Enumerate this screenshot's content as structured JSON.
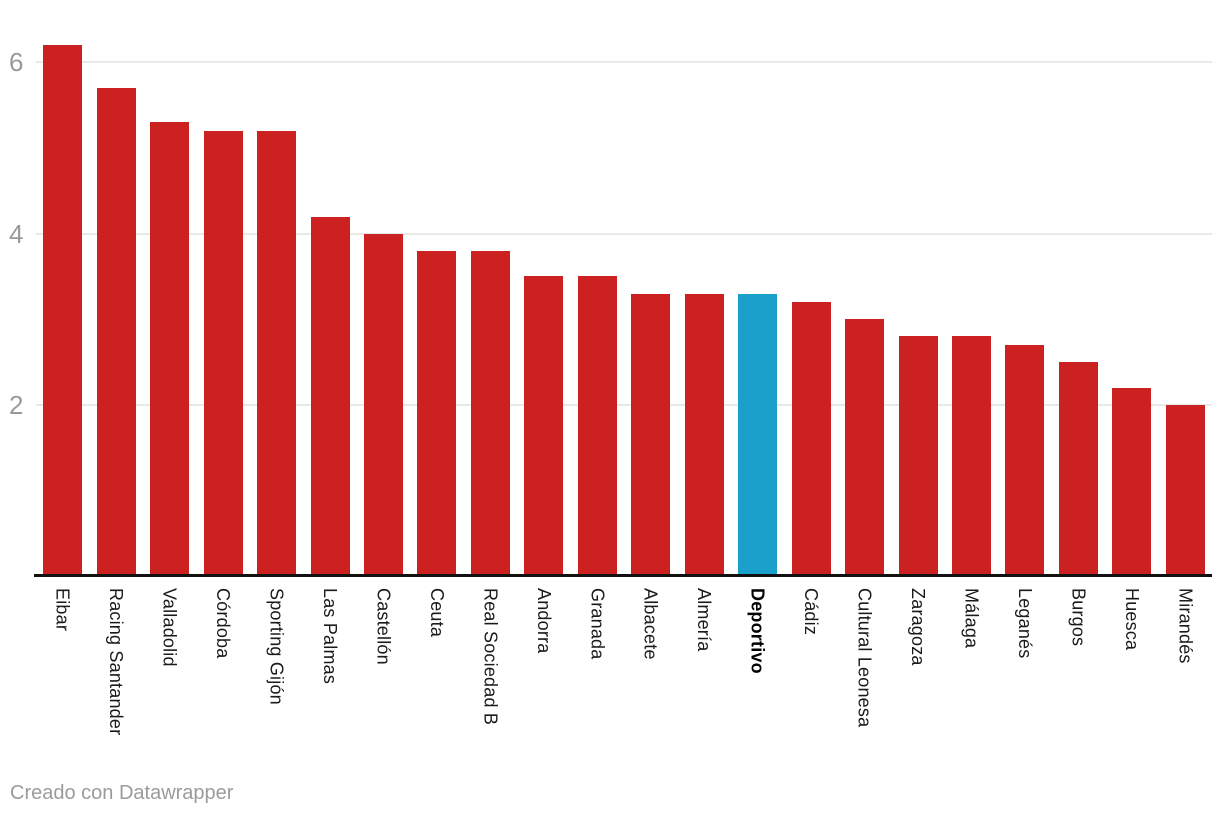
{
  "chart_data": {
    "type": "bar",
    "categories": [
      "Eibar",
      "Racing Santander",
      "Valladolid",
      "Córdoba",
      "Sporting Gijón",
      "Las Palmas",
      "Castellón",
      "Ceuta",
      "Real Sociedad B",
      "Andorra",
      "Granada",
      "Albacete",
      "Almería",
      "Deportivo",
      "Cádiz",
      "Cultural Leonesa",
      "Zaragoza",
      "Málaga",
      "Leganés",
      "Burgos",
      "Huesca",
      "Mirandés"
    ],
    "values": [
      6.2,
      5.7,
      5.3,
      5.2,
      5.2,
      4.2,
      4.0,
      3.8,
      3.8,
      3.5,
      3.5,
      3.3,
      3.3,
      3.3,
      3.2,
      3.0,
      2.8,
      2.8,
      2.7,
      2.5,
      2.2,
      2.0
    ],
    "highlight_category": "Deportivo",
    "highlight_index": 13,
    "y_ticks": [
      2,
      4,
      6
    ],
    "ylim": [
      0,
      6.73
    ],
    "grid": true,
    "legend": "none",
    "title": "",
    "xlabel": "",
    "ylabel": ""
  },
  "colors": {
    "bar": "#cb2121",
    "highlight": "#1b9fcb",
    "gridline": "#e9e9e9",
    "axis": "#111111",
    "tick_label": "#9a9a9a",
    "category_label": "#1a1a1a",
    "footer": "#9b9b9b"
  },
  "footer": {
    "text": "Creado con Datawrapper"
  }
}
